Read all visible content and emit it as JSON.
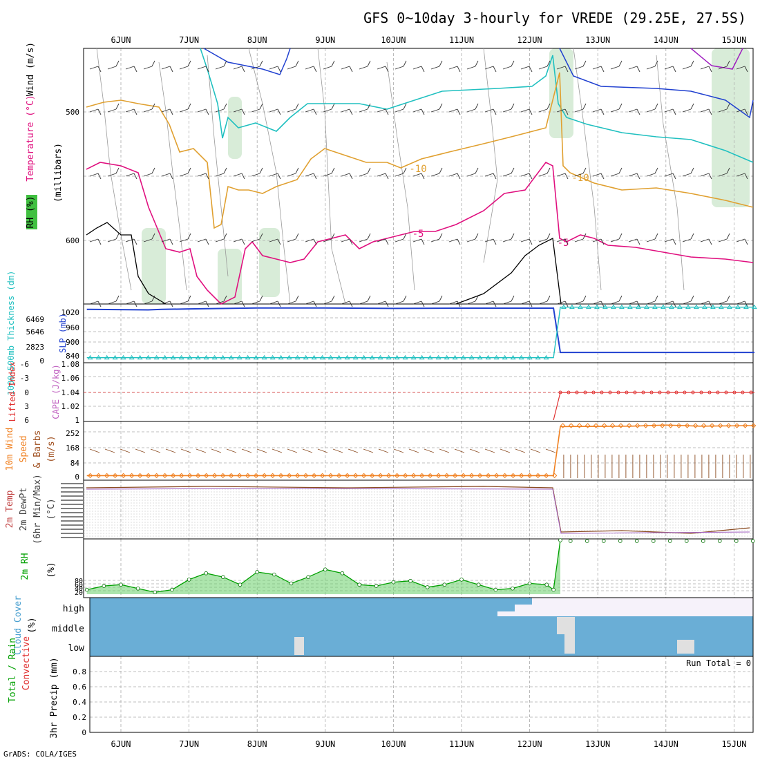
{
  "title": "GFS 0~10day 3-hourly for VREDE (29.25E, 27.5S)",
  "footer": "GrADS: COLA/IGES",
  "date_labels": [
    "6JUN",
    "7JUN",
    "8JUN",
    "9JUN",
    "10JUN",
    "11JUN",
    "12JUN",
    "13JUN",
    "14JUN",
    "15JUN"
  ],
  "colors": {
    "grid": "#aaaaaa",
    "temp_minus10": "#e0a030",
    "temp_minus5": "#e0107f",
    "cyan": "#20c0c0",
    "blue": "#2040d0",
    "purple": "#a020c0",
    "rh_fill": "#c8e4c8",
    "cloud": "#6aaed6",
    "cloud_light": "#e0e0e0",
    "orange": "#f08020",
    "red": "#e03030",
    "green": "#00a000"
  },
  "panels": {
    "upper_air": {
      "ylabel_parts": [
        "Wind (m/s)",
        "Temperature (°C)",
        "RH (%)"
      ],
      "pressure_label": "(millibars)",
      "ticks": [
        "500",
        "600"
      ],
      "contour_labels": [
        "-10",
        "-10",
        "-5",
        "-5"
      ]
    },
    "slp": {
      "ylabel_left": "1000~500mb Thickness (dm)",
      "ylabel_right": "SLP (mb)",
      "thk_ticks": [
        "6469",
        "5646",
        "2823",
        "0"
      ],
      "slp_ticks": [
        "1020",
        "960",
        "900",
        "840"
      ]
    },
    "cape": {
      "ylabel_left": "Lifted Index",
      "ylabel_right": "CAPE (J/kg)",
      "li_ticks": [
        "-6",
        "-3",
        "0",
        "3",
        "6"
      ],
      "cape_ticks": [
        "1.08",
        "1.06",
        "1.04",
        "1.02",
        "1"
      ]
    },
    "wind10": {
      "ylabel": [
        "10m Wind",
        "Speed",
        "& Barbs",
        "(m/s)"
      ],
      "ticks": [
        "252",
        "168",
        "84",
        "0"
      ]
    },
    "temp2m": {
      "ylabel": [
        "2m Temp",
        "2m DewPt",
        "(6hr Min/Max)",
        "(°C)"
      ]
    },
    "rh2m": {
      "ylabel": [
        "2m RH",
        "(%)"
      ],
      "ticks": [
        "80",
        "60",
        "40",
        "20"
      ]
    },
    "cloud": {
      "ylabel": [
        "Cloud Cover",
        "(%)"
      ],
      "levels": [
        "high",
        "middle",
        "low"
      ]
    },
    "precip": {
      "ylabel": [
        "Total / Rain",
        "Convective",
        "3hr Precip (mm)"
      ],
      "ticks": [
        "0.8",
        "0.6",
        "0.4",
        "0.2",
        "0"
      ],
      "run_total": "Run Total = 0"
    }
  },
  "chart_data": [
    {
      "type": "line",
      "name": "slp",
      "x_days": [
        5.5,
        6.4,
        6.6,
        7.0,
        8.0,
        9.0,
        10.0,
        11.0,
        12.0,
        12.35,
        12.45,
        15.3
      ],
      "values": [
        1018,
        1016,
        1018,
        1020,
        1024,
        1024,
        1022,
        1023,
        1023,
        1023,
        842,
        842
      ]
    },
    {
      "type": "line",
      "name": "thickness",
      "x_days": [
        5.5,
        12.35,
        12.45,
        15.3
      ],
      "values": [
        200,
        200,
        6600,
        6600
      ]
    },
    {
      "type": "line",
      "name": "wind10_speed",
      "x_days": [
        5.5,
        12.35,
        12.45,
        13.5,
        14.0,
        14.5,
        15.3
      ],
      "values": [
        6,
        6,
        270,
        272,
        278,
        272,
        275
      ],
      "ylim": [
        0,
        290
      ]
    },
    {
      "type": "area",
      "name": "rh2m",
      "x_days": [
        5.5,
        5.75,
        6.0,
        6.25,
        6.5,
        6.75,
        7.0,
        7.25,
        7.5,
        7.75,
        8.0,
        8.25,
        8.5,
        8.75,
        9.0,
        9.25,
        9.5,
        9.75,
        10.0,
        10.25,
        10.5,
        10.75,
        11.0,
        11.25,
        11.5,
        11.75,
        12.0,
        12.25,
        12.35,
        12.45
      ],
      "values": [
        22,
        28,
        30,
        24,
        18,
        22,
        38,
        48,
        42,
        30,
        50,
        46,
        32,
        42,
        54,
        48,
        30,
        28,
        34,
        36,
        26,
        30,
        38,
        30,
        22,
        24,
        32,
        30,
        22,
        100
      ],
      "ylim": [
        15,
        100
      ]
    }
  ]
}
